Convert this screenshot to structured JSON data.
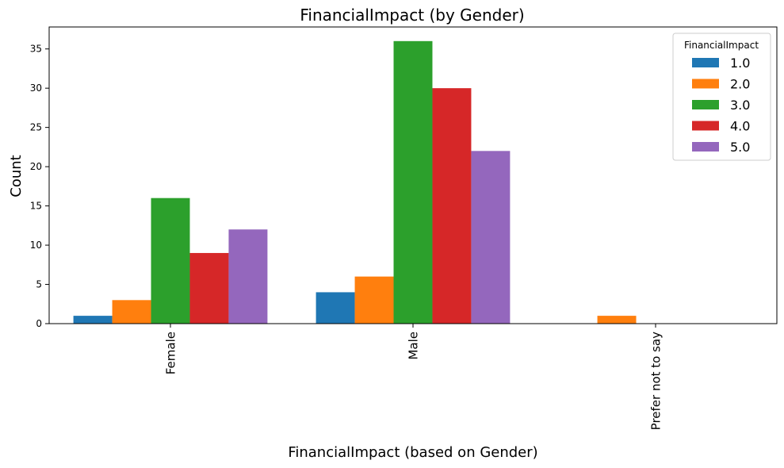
{
  "chart_data": {
    "type": "bar",
    "title": "FinancialImpact (by Gender)",
    "xlabel": "FinancialImpact (based on Gender)",
    "ylabel": "Count",
    "categories": [
      "Female",
      "Male",
      "Prefer not to say"
    ],
    "yticks": [
      "0",
      "5",
      "10",
      "15",
      "20",
      "25",
      "30",
      "35"
    ],
    "ylim": [
      0,
      37.8
    ],
    "grid": false,
    "legend": {
      "title": "FinancialImpact",
      "position": "top-right"
    },
    "series": [
      {
        "name": "1.0",
        "color": "#1f77b4",
        "values": [
          1,
          4,
          0
        ]
      },
      {
        "name": "2.0",
        "color": "#ff7f0e",
        "values": [
          3,
          6,
          1
        ]
      },
      {
        "name": "3.0",
        "color": "#2ca02c",
        "values": [
          16,
          36,
          0
        ]
      },
      {
        "name": "4.0",
        "color": "#d62728",
        "values": [
          9,
          30,
          0
        ]
      },
      {
        "name": "5.0",
        "color": "#9467bd",
        "values": [
          12,
          22,
          0
        ]
      }
    ]
  }
}
